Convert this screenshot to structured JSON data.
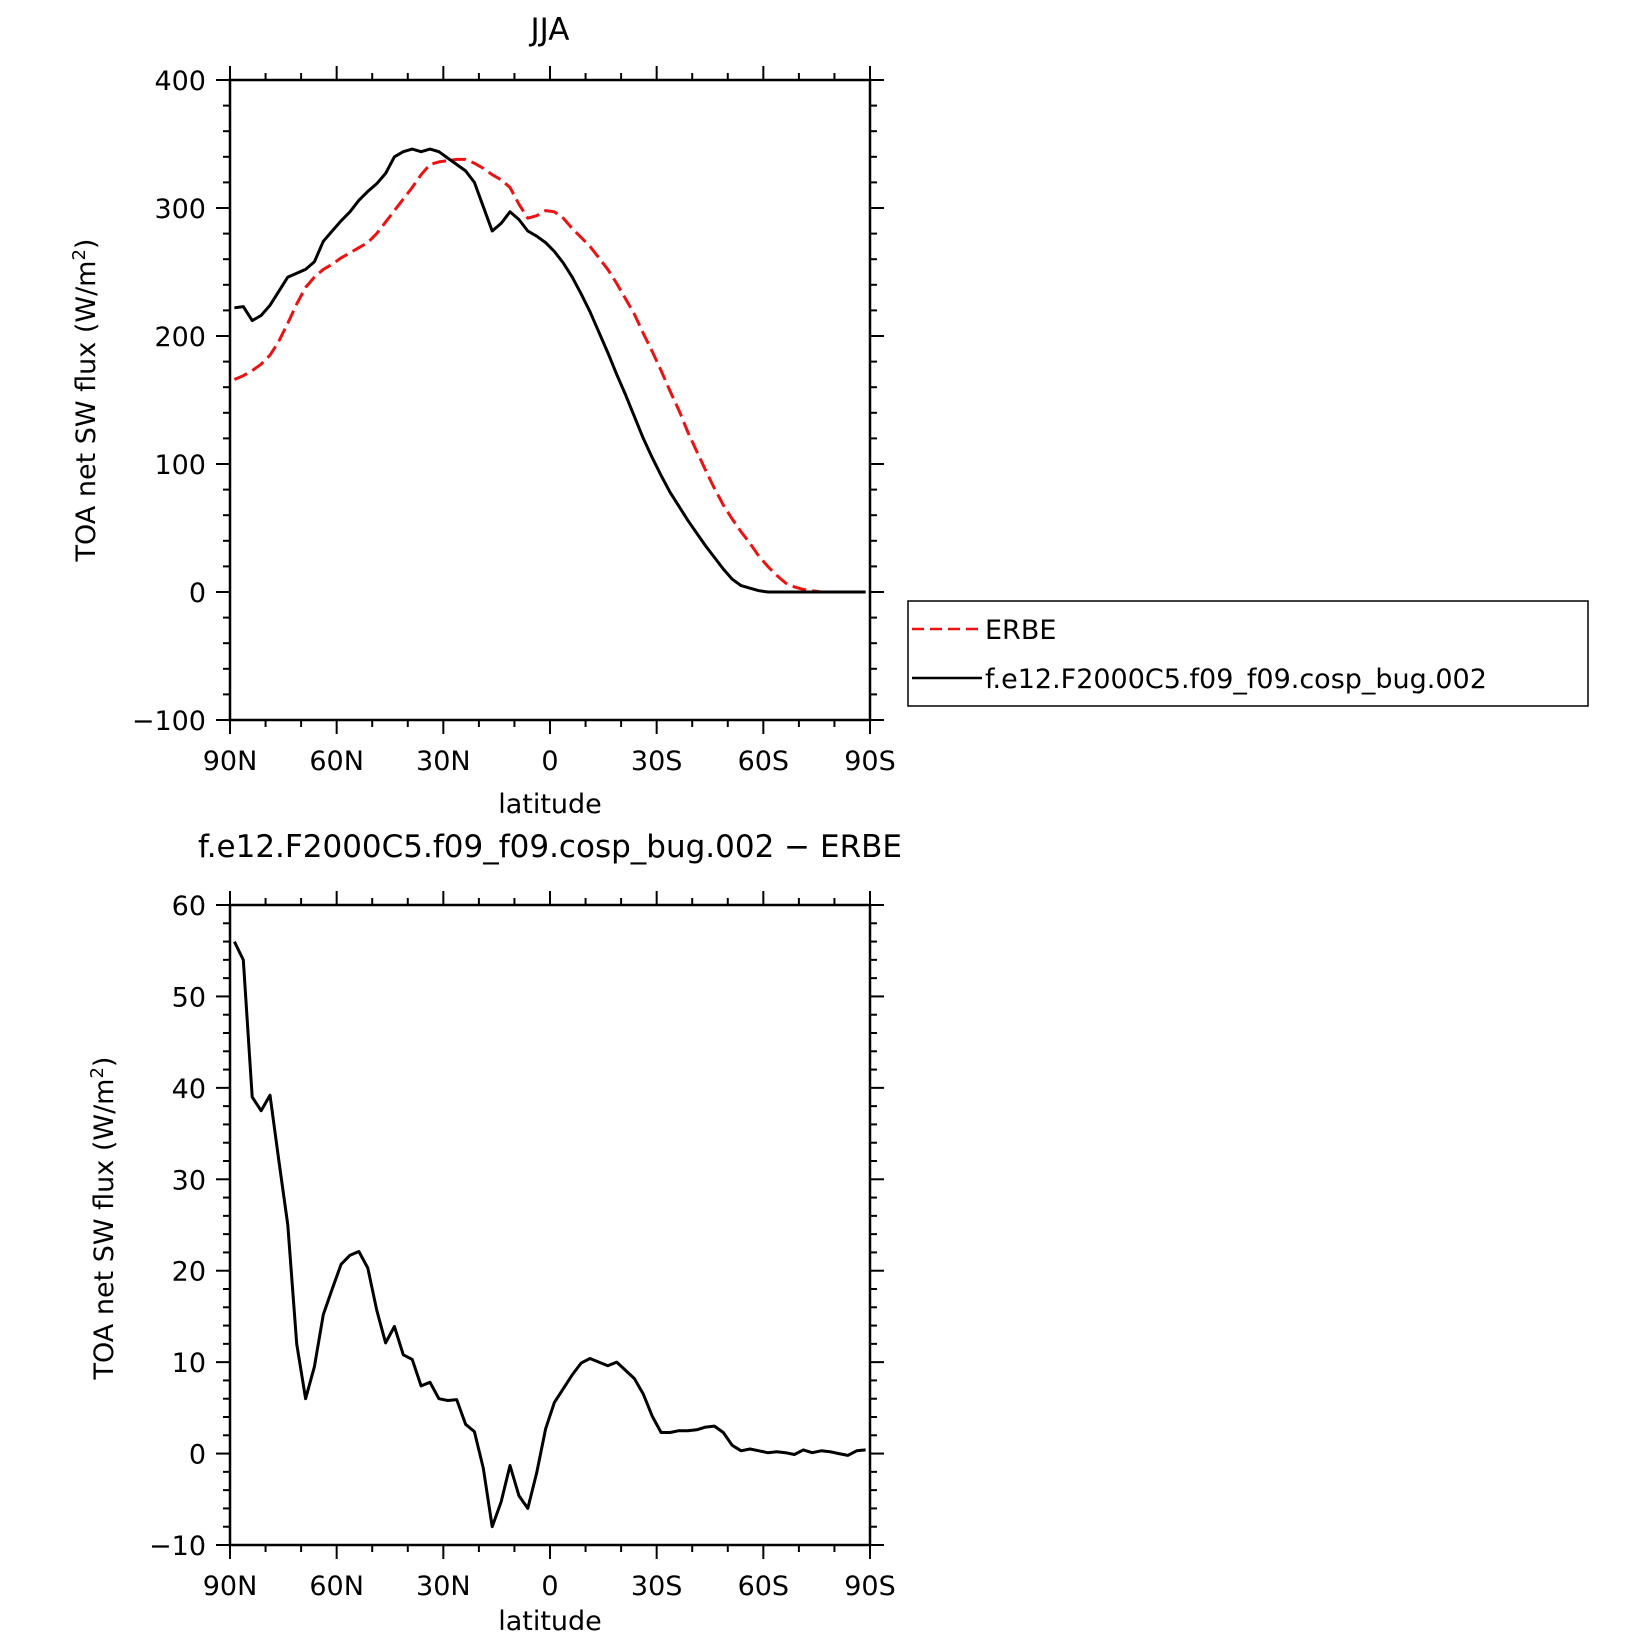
{
  "chart_data": [
    {
      "type": "line",
      "title": "JJA",
      "xlabel": "latitude",
      "ylabel": "TOA net SW flux (W/m²)",
      "ylabel_parts": [
        "TOA net SW flux (W/m",
        "2",
        ")"
      ],
      "xlim": [
        90,
        -90
      ],
      "ylim": [
        -100,
        400
      ],
      "xticks": [
        90,
        60,
        30,
        0,
        -30,
        -60,
        -90
      ],
      "xtick_labels": [
        "90N",
        "60N",
        "30N",
        "0",
        "30S",
        "60S",
        "90S"
      ],
      "yticks": [
        -100,
        0,
        100,
        200,
        300,
        400
      ],
      "ytick_labels": [
        "−100",
        "0",
        "100",
        "200",
        "300",
        "400"
      ],
      "legend": "right",
      "series": [
        {
          "name": "ERBE",
          "color": "#ee1111",
          "dash": "dashed",
          "x": [
            88.75,
            86.25,
            83.75,
            81.25,
            78.75,
            76.25,
            73.75,
            71.25,
            68.75,
            66.25,
            63.75,
            61.25,
            58.75,
            56.25,
            53.75,
            51.25,
            48.75,
            46.25,
            43.75,
            41.25,
            38.75,
            36.25,
            33.75,
            31.25,
            28.75,
            26.25,
            23.75,
            21.25,
            18.75,
            16.25,
            13.75,
            11.25,
            8.75,
            6.25,
            3.75,
            1.25,
            -1.25,
            -3.75,
            -6.25,
            -8.75,
            -11.25,
            -13.75,
            -16.25,
            -18.75,
            -21.25,
            -23.75,
            -26.25,
            -28.75,
            -31.25,
            -33.75,
            -36.25,
            -38.75,
            -41.25,
            -43.75,
            -46.25,
            -48.75,
            -51.25,
            -53.75,
            -56.25,
            -58.75,
            -61.25,
            -63.75,
            -66.25,
            -68.75,
            -71.25,
            -73.75,
            -76.25,
            -78.75,
            -81.25,
            -83.75,
            -86.25,
            -88.75
          ],
          "y": [
            166,
            169,
            173,
            178,
            185,
            196,
            210,
            225,
            238,
            246,
            252,
            256,
            261,
            265,
            269,
            273,
            280,
            289,
            298,
            307,
            316,
            326,
            334,
            336,
            337,
            338,
            338,
            335,
            331,
            326,
            322,
            316,
            303,
            292,
            294,
            298,
            297,
            292,
            284,
            277,
            270,
            261,
            252,
            241,
            229,
            217,
            202,
            188,
            173,
            157,
            142,
            125,
            110,
            95,
            81,
            68,
            57,
            47,
            38,
            28,
            20,
            13,
            7,
            4,
            2,
            1,
            0,
            0,
            0,
            0,
            0,
            0
          ]
        },
        {
          "name": "f.e12.F2000C5.f09_f09.cosp_bug.002",
          "color": "#000000",
          "dash": "solid",
          "x": [
            88.75,
            86.25,
            83.75,
            81.25,
            78.75,
            76.25,
            73.75,
            71.25,
            68.75,
            66.25,
            63.75,
            61.25,
            58.75,
            56.25,
            53.75,
            51.25,
            48.75,
            46.25,
            43.75,
            41.25,
            38.75,
            36.25,
            33.75,
            31.25,
            28.75,
            26.25,
            23.75,
            21.25,
            18.75,
            16.25,
            13.75,
            11.25,
            8.75,
            6.25,
            3.75,
            1.25,
            -1.25,
            -3.75,
            -6.25,
            -8.75,
            -11.25,
            -13.75,
            -16.25,
            -18.75,
            -21.25,
            -23.75,
            -26.25,
            -28.75,
            -31.25,
            -33.75,
            -36.25,
            -38.75,
            -41.25,
            -43.75,
            -46.25,
            -48.75,
            -51.25,
            -53.75,
            -56.25,
            -58.75,
            -61.25,
            -63.75,
            -66.25,
            -68.75,
            -71.25,
            -73.75,
            -76.25,
            -78.75,
            -81.25,
            -83.75,
            -86.25,
            -88.75
          ],
          "y": [
            222,
            223,
            212,
            216,
            224,
            235,
            246,
            249,
            252,
            258,
            274,
            282,
            290,
            297,
            306,
            313,
            319,
            327,
            340,
            344,
            346,
            344,
            346,
            344,
            339,
            334,
            329,
            320,
            301,
            282,
            288,
            297,
            291,
            282,
            278,
            273,
            266,
            257,
            246,
            233,
            219,
            203,
            187,
            170,
            154,
            137,
            120,
            105,
            91,
            78,
            67,
            56,
            46,
            36,
            27,
            18,
            10,
            5,
            3,
            1,
            0,
            0,
            0,
            0,
            0,
            0,
            0,
            0,
            0,
            0,
            0,
            0
          ]
        }
      ]
    },
    {
      "type": "line",
      "title": "f.e12.F2000C5.f09_f09.cosp_bug.002 − ERBE",
      "xlabel": "latitude",
      "ylabel": "TOA net SW flux (W/m²)",
      "ylabel_parts": [
        "TOA net SW flux (W/m",
        "2",
        ")"
      ],
      "xlim": [
        90,
        -90
      ],
      "ylim": [
        -10,
        60
      ],
      "xticks": [
        90,
        60,
        30,
        0,
        -30,
        -60,
        -90
      ],
      "xtick_labels": [
        "90N",
        "60N",
        "30N",
        "0",
        "30S",
        "60S",
        "90S"
      ],
      "yticks": [
        -10,
        0,
        10,
        20,
        30,
        40,
        50,
        60
      ],
      "ytick_labels": [
        "−10",
        "0",
        "10",
        "20",
        "30",
        "40",
        "50",
        "60"
      ],
      "series": [
        {
          "color": "#000000",
          "dash": "solid",
          "x": [
            88.75,
            86.25,
            83.75,
            81.25,
            78.75,
            76.25,
            73.75,
            71.25,
            68.75,
            66.25,
            63.75,
            61.25,
            58.75,
            56.25,
            53.75,
            51.25,
            48.75,
            46.25,
            43.75,
            41.25,
            38.75,
            36.25,
            33.75,
            31.25,
            28.75,
            26.25,
            23.75,
            21.25,
            18.75,
            16.25,
            13.75,
            11.25,
            8.75,
            6.25,
            3.75,
            1.25,
            -1.25,
            -3.75,
            -6.25,
            -8.75,
            -11.25,
            -13.75,
            -16.25,
            -18.75,
            -21.25,
            -23.75,
            -26.25,
            -28.75,
            -31.25,
            -33.75,
            -36.25,
            -38.75,
            -41.25,
            -43.75,
            -46.25,
            -48.75,
            -51.25,
            -53.75,
            -56.25,
            -58.75,
            -61.25,
            -63.75,
            -66.25,
            -68.75,
            -71.25,
            -73.75,
            -76.25,
            -78.75,
            -81.25,
            -83.75,
            -86.25,
            -88.75
          ],
          "y": [
            56,
            54,
            39,
            37.5,
            39.2,
            32,
            25,
            12,
            6,
            9.5,
            15.2,
            18,
            20.7,
            21.7,
            22.1,
            20.3,
            15.7,
            12.1,
            13.9,
            10.8,
            10.3,
            7.4,
            7.8,
            6,
            5.8,
            5.9,
            3.2,
            2.4,
            -1.6,
            -8,
            -5.3,
            -1.3,
            -4.6,
            -6,
            -2.1,
            2.7,
            5.6,
            7.1,
            8.6,
            9.9,
            10.4,
            10,
            9.6,
            10,
            9.1,
            8.2,
            6.5,
            4.1,
            2.3,
            2.3,
            2.5,
            2.5,
            2.6,
            2.9,
            3,
            2.3,
            0.9,
            0.3,
            0.5,
            0.3,
            0.1,
            0.2,
            0.1,
            -0.1,
            0.4,
            0.1,
            0.3,
            0.2,
            0,
            -0.2,
            0.3,
            0.4
          ]
        }
      ]
    }
  ]
}
